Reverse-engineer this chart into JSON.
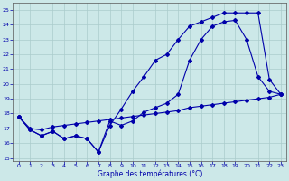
{
  "background_color": "#cce8e8",
  "grid_color": "#aacccc",
  "line_color": "#0000aa",
  "xlabel": "Graphe des températures (°C)",
  "xlim": [
    -0.5,
    23.5
  ],
  "ylim": [
    14.8,
    25.5
  ],
  "yticks": [
    15,
    16,
    17,
    18,
    19,
    20,
    21,
    22,
    23,
    24,
    25
  ],
  "xticks": [
    0,
    1,
    2,
    3,
    4,
    5,
    6,
    7,
    8,
    9,
    10,
    11,
    12,
    13,
    14,
    15,
    16,
    17,
    18,
    19,
    20,
    21,
    22,
    23
  ],
  "series1_x": [
    0,
    1,
    2,
    3,
    4,
    5,
    6,
    7,
    8,
    9,
    10,
    11,
    12,
    13,
    14,
    15,
    16,
    17,
    18,
    19,
    20,
    21,
    22,
    23
  ],
  "series1_y": [
    17.8,
    16.9,
    16.5,
    16.8,
    16.3,
    16.5,
    16.3,
    15.4,
    17.2,
    18.3,
    19.5,
    20.5,
    21.6,
    22.0,
    23.0,
    23.9,
    24.2,
    24.5,
    24.8,
    24.8,
    24.8,
    24.8,
    20.3,
    19.3
  ],
  "series2_x": [
    0,
    1,
    2,
    3,
    4,
    5,
    6,
    7,
    8,
    9,
    10,
    11,
    12,
    13,
    14,
    15,
    16,
    17,
    18,
    19,
    20,
    21,
    22,
    23
  ],
  "series2_y": [
    17.8,
    16.9,
    16.5,
    16.8,
    16.3,
    16.5,
    16.3,
    15.4,
    17.5,
    17.2,
    17.5,
    18.1,
    18.4,
    18.7,
    19.3,
    21.6,
    23.0,
    23.9,
    24.2,
    24.3,
    23.0,
    20.5,
    19.5,
    19.3
  ],
  "series3_x": [
    0,
    1,
    2,
    3,
    4,
    5,
    6,
    7,
    8,
    9,
    10,
    11,
    12,
    13,
    14,
    15,
    16,
    17,
    18,
    19,
    20,
    21,
    22,
    23
  ],
  "series3_y": [
    17.8,
    17.0,
    16.9,
    17.1,
    17.2,
    17.3,
    17.4,
    17.5,
    17.6,
    17.7,
    17.8,
    17.9,
    18.0,
    18.1,
    18.2,
    18.4,
    18.5,
    18.6,
    18.7,
    18.8,
    18.9,
    19.0,
    19.1,
    19.3
  ]
}
